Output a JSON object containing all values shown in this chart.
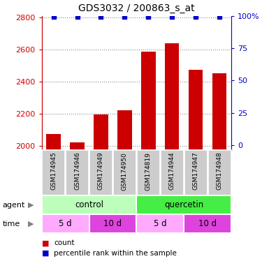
{
  "title": "GDS3032 / 200863_s_at",
  "samples": [
    "GSM174945",
    "GSM174946",
    "GSM174949",
    "GSM174950",
    "GSM174819",
    "GSM174944",
    "GSM174947",
    "GSM174948"
  ],
  "counts": [
    2075,
    2025,
    2195,
    2225,
    2590,
    2640,
    2475,
    2455
  ],
  "ylim": [
    1975,
    2810
  ],
  "yticks": [
    2000,
    2200,
    2400,
    2600,
    2800
  ],
  "right_yticks": [
    0,
    25,
    50,
    75,
    100
  ],
  "right_ylim": [
    -4,
    100
  ],
  "bar_color": "#cc0000",
  "dot_color": "#0000cc",
  "sample_label_bg": "#cccccc",
  "agent_groups": [
    {
      "label": "control",
      "start": 0,
      "end": 3,
      "color": "#bbffbb"
    },
    {
      "label": "quercetin",
      "start": 4,
      "end": 7,
      "color": "#44ee44"
    }
  ],
  "time_groups": [
    {
      "label": "5 d",
      "start": 0,
      "end": 1,
      "color": "#ffaaff"
    },
    {
      "label": "10 d",
      "start": 2,
      "end": 3,
      "color": "#dd44dd"
    },
    {
      "label": "5 d",
      "start": 4,
      "end": 5,
      "color": "#ffaaff"
    },
    {
      "label": "10 d",
      "start": 6,
      "end": 7,
      "color": "#dd44dd"
    }
  ],
  "legend_count_color": "#cc0000",
  "legend_pct_color": "#0000cc",
  "grid_color": "#888888"
}
